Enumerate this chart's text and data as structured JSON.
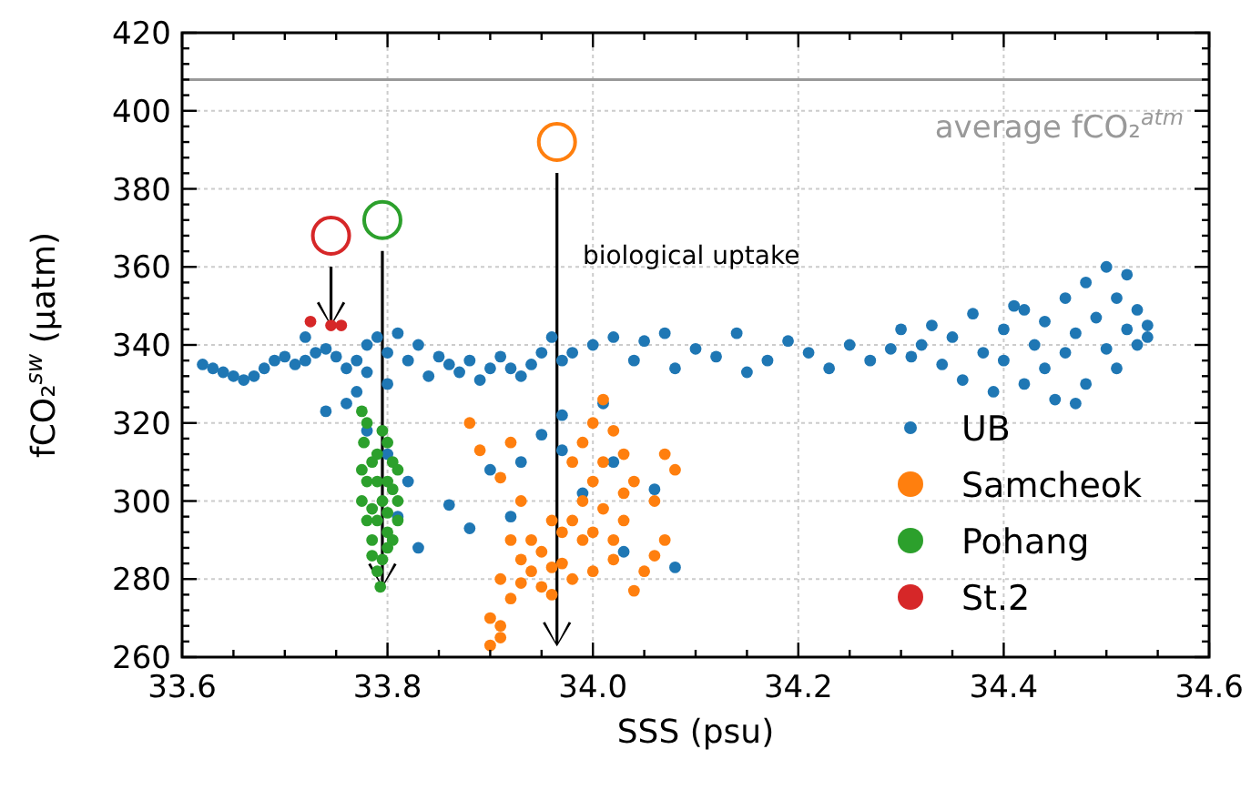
{
  "chart_data": {
    "type": "scatter",
    "xlabel": "SSS (psu)",
    "ylabel": "fCO₂$^{sw}$ (µatm)",
    "xlim": [
      33.6,
      34.6
    ],
    "ylim": [
      260,
      420
    ],
    "xticks": [
      33.6,
      {
        "value": 33.65,
        "label": null
      },
      {
        "value": 33.7,
        "label": null
      },
      {
        "value": 33.75,
        "label": null
      },
      33.8,
      {
        "value": 33.85,
        "label": null
      },
      {
        "value": 33.9,
        "label": null
      },
      {
        "value": 33.95,
        "label": null
      },
      {
        "value": 34.0,
        "label": "34.0"
      },
      {
        "value": 34.05,
        "label": null
      },
      {
        "value": 34.1,
        "label": null
      },
      {
        "value": 34.15,
        "label": null
      },
      34.2,
      {
        "value": 34.25,
        "label": null
      },
      {
        "value": 34.3,
        "label": null
      },
      {
        "value": 34.35,
        "label": null
      },
      34.4,
      {
        "value": 34.45,
        "label": null
      },
      {
        "value": 34.5,
        "label": null
      },
      {
        "value": 34.55,
        "label": null
      },
      34.6
    ],
    "yticks": [
      260,
      {
        "value": 264,
        "label": null
      },
      {
        "value": 268,
        "label": null
      },
      {
        "value": 272,
        "label": null
      },
      {
        "value": 276,
        "label": null
      },
      280,
      {
        "value": 284,
        "label": null
      },
      {
        "value": 288,
        "label": null
      },
      {
        "value": 292,
        "label": null
      },
      {
        "value": 296,
        "label": null
      },
      300,
      {
        "value": 304,
        "label": null
      },
      {
        "value": 308,
        "label": null
      },
      {
        "value": 312,
        "label": null
      },
      {
        "value": 316,
        "label": null
      },
      320,
      {
        "value": 324,
        "label": null
      },
      {
        "value": 328,
        "label": null
      },
      {
        "value": 332,
        "label": null
      },
      {
        "value": 336,
        "label": null
      },
      340,
      {
        "value": 344,
        "label": null
      },
      {
        "value": 348,
        "label": null
      },
      {
        "value": 352,
        "label": null
      },
      {
        "value": 356,
        "label": null
      },
      360,
      {
        "value": 364,
        "label": null
      },
      {
        "value": 368,
        "label": null
      },
      {
        "value": 372,
        "label": null
      },
      {
        "value": 376,
        "label": null
      },
      380,
      {
        "value": 384,
        "label": null
      },
      {
        "value": 388,
        "label": null
      },
      {
        "value": 392,
        "label": null
      },
      {
        "value": 396,
        "label": null
      },
      400,
      {
        "value": 404,
        "label": null
      },
      {
        "value": 408,
        "label": null
      },
      {
        "value": 412,
        "label": null
      },
      {
        "value": 416,
        "label": null
      },
      420
    ],
    "grid": true,
    "legend": "bottom right",
    "marker": "circle",
    "ref_lines": [
      {
        "axis": "y",
        "value": 408,
        "label": "average fCO₂$^{atm}$",
        "color": "#999999"
      }
    ],
    "annotations": [
      "biological uptake"
    ],
    "series": [
      {
        "name": "UB",
        "color": "#1f77b4",
        "x": [
          33.62,
          33.63,
          33.64,
          33.65,
          33.66,
          33.67,
          33.68,
          33.69,
          33.7,
          33.71,
          33.72,
          33.73,
          33.74,
          33.75,
          33.76,
          33.77,
          33.78,
          33.78,
          33.79,
          33.8,
          33.8,
          33.81,
          33.82,
          33.83,
          33.84,
          33.85,
          33.86,
          33.87,
          33.88,
          33.89,
          33.9,
          33.91,
          33.92,
          33.93,
          33.94,
          33.95,
          33.96,
          33.97,
          33.98,
          34.0,
          34.02,
          34.04,
          34.05,
          34.07,
          34.08,
          34.1,
          34.12,
          34.14,
          34.15,
          34.17,
          34.19,
          34.21,
          34.23,
          34.25,
          34.27,
          34.29,
          34.3,
          34.31,
          34.32,
          34.33,
          34.34,
          34.35,
          34.36,
          34.37,
          34.38,
          34.39,
          34.4,
          34.4,
          34.41,
          34.42,
          34.43,
          34.44,
          34.44,
          34.45,
          34.46,
          34.46,
          34.47,
          34.48,
          34.48,
          34.49,
          34.5,
          34.5,
          34.51,
          34.51,
          34.52,
          34.52,
          34.53,
          34.53,
          34.54,
          34.54,
          34.47,
          34.42,
          33.76,
          33.78,
          33.8,
          33.82,
          33.81,
          33.74,
          33.77,
          33.83,
          33.86,
          33.88,
          33.9,
          33.92,
          33.95,
          33.93,
          33.97,
          33.99,
          34.02,
          34.03,
          34.06,
          34.08,
          34.01,
          33.97,
          33.72
        ],
        "values": [
          335,
          334,
          333,
          332,
          331,
          332,
          334,
          336,
          337,
          335,
          336,
          338,
          339,
          337,
          334,
          336,
          340,
          333,
          342,
          338,
          330,
          343,
          336,
          340,
          332,
          337,
          335,
          333,
          336,
          331,
          334,
          337,
          334,
          332,
          335,
          338,
          342,
          336,
          338,
          340,
          342,
          336,
          341,
          343,
          334,
          339,
          337,
          343,
          333,
          336,
          341,
          338,
          334,
          340,
          336,
          339,
          344,
          337,
          340,
          345,
          335,
          342,
          331,
          348,
          338,
          328,
          344,
          336,
          350,
          330,
          340,
          346,
          334,
          326,
          352,
          338,
          343,
          330,
          356,
          347,
          339,
          360,
          334,
          352,
          344,
          358,
          340,
          349,
          345,
          342,
          325,
          349,
          325,
          318,
          312,
          305,
          296,
          323,
          328,
          288,
          299,
          293,
          308,
          296,
          317,
          310,
          313,
          302,
          310,
          287,
          303,
          283,
          325,
          322,
          342
        ]
      },
      {
        "name": "Samcheok",
        "color": "#ff7f0e",
        "x": [
          33.9,
          33.91,
          33.9,
          33.92,
          33.91,
          33.93,
          33.94,
          33.95,
          33.96,
          33.97,
          33.98,
          33.99,
          34.0,
          34.01,
          34.02,
          34.0,
          34.01,
          33.98,
          33.96,
          33.94,
          33.95,
          33.97,
          33.99,
          34.01,
          34.03,
          34.03,
          34.04,
          34.06,
          34.07,
          34.06,
          34.05,
          34.04,
          34.03,
          34.02,
          34.0,
          33.98,
          33.92,
          33.93,
          33.91,
          33.88,
          33.89,
          33.92,
          33.91,
          34.07,
          34.08,
          33.93,
          33.96,
          34.0,
          34.02,
          33.99
        ],
        "values": [
          263,
          265,
          270,
          275,
          280,
          285,
          290,
          287,
          283,
          292,
          295,
          300,
          305,
          310,
          318,
          320,
          326,
          310,
          295,
          282,
          278,
          284,
          290,
          298,
          302,
          295,
          305,
          300,
          290,
          286,
          282,
          277,
          312,
          290,
          282,
          280,
          290,
          300,
          306,
          320,
          313,
          315,
          268,
          312,
          308,
          279,
          276,
          292,
          285,
          315
        ]
      },
      {
        "name": "Pohang",
        "color": "#2ca02c",
        "x": [
          33.775,
          33.78,
          33.777,
          33.785,
          33.78,
          33.775,
          33.785,
          33.79,
          33.795,
          33.8,
          33.805,
          33.8,
          33.795,
          33.79,
          33.81,
          33.81,
          33.805,
          33.8,
          33.795,
          33.79,
          33.793,
          33.785,
          33.78,
          33.79,
          33.8,
          33.805,
          33.785,
          33.8,
          33.81,
          33.775
        ],
        "values": [
          323,
          320,
          315,
          310,
          305,
          300,
          298,
          295,
          300,
          305,
          310,
          315,
          318,
          312,
          300,
          295,
          290,
          288,
          285,
          282,
          278,
          290,
          295,
          305,
          297,
          303,
          286,
          292,
          308,
          308
        ]
      },
      {
        "name": "St.2",
        "color": "#d62728",
        "x": [
          33.725,
          33.745,
          33.755
        ],
        "values": [
          346,
          345,
          345
        ]
      },
      {
        "x": [
          33.745,
          33.795,
          33.965
        ],
        "values": [
          368,
          372,
          392
        ],
        "colors": [
          "#d62728",
          "#2ca02c",
          "#ff7f0e"
        ]
      }
    ]
  }
}
